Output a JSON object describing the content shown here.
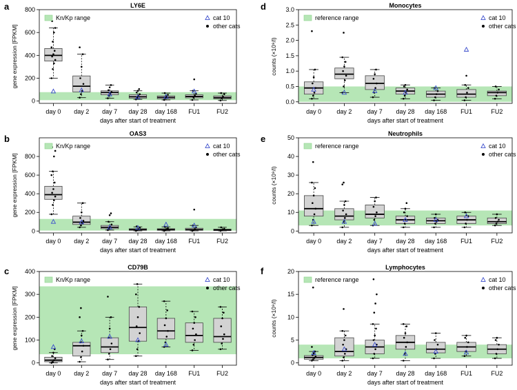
{
  "chart_data": [
    {
      "panel": "a",
      "type": "boxplot",
      "title": "LY6E",
      "ylabel": "gene expression [FPKM]",
      "xlabel": "days after start of treatment",
      "categories": [
        "day 0",
        "day 2",
        "day 7",
        "day 28",
        "day 168",
        "FU1",
        "FU2"
      ],
      "ylim": [
        -20,
        800
      ],
      "yticks": [
        0,
        200,
        400,
        600,
        800
      ],
      "band": [
        8,
        78
      ],
      "band_label": "Kn/Kp range",
      "legend": [
        "cat 10",
        "other cats"
      ],
      "series": [
        {
          "q1": 350,
          "median": 400,
          "q3": 460,
          "lo": 200,
          "hi": 640,
          "cat10": 85,
          "pts": [
            200,
            280,
            330,
            360,
            390,
            410,
            440,
            470,
            520,
            600,
            640,
            700
          ]
        },
        {
          "q1": 80,
          "median": 130,
          "q3": 220,
          "lo": 30,
          "hi": 410,
          "cat10": 95,
          "pts": [
            30,
            60,
            90,
            150,
            200,
            300,
            410,
            470
          ]
        },
        {
          "q1": 55,
          "median": 75,
          "q3": 90,
          "lo": 25,
          "hi": 140,
          "cat10": 60,
          "pts": [
            25,
            45,
            65,
            80,
            95,
            120,
            140
          ]
        },
        {
          "q1": 25,
          "median": 38,
          "q3": 55,
          "lo": 15,
          "hi": 90,
          "cat10": 35,
          "pts": [
            15,
            30,
            45,
            60,
            75,
            90,
            105
          ]
        },
        {
          "q1": 20,
          "median": 32,
          "q3": 45,
          "lo": 10,
          "hi": 70,
          "cat10": 40,
          "pts": [
            10,
            25,
            40,
            55,
            70
          ]
        },
        {
          "q1": 28,
          "median": 40,
          "q3": 55,
          "lo": 10,
          "hi": 90,
          "cat10": 85,
          "pts": [
            10,
            30,
            50,
            65,
            90,
            190
          ]
        },
        {
          "q1": 20,
          "median": 30,
          "q3": 45,
          "lo": 5,
          "hi": 70,
          "cat10": null,
          "pts": [
            5,
            25,
            40,
            60,
            70
          ]
        }
      ]
    },
    {
      "panel": "b",
      "type": "boxplot",
      "title": "OAS3",
      "ylabel": "gene expression [FPKM]",
      "xlabel": "days after start of treatment",
      "categories": [
        "day 0",
        "day 2",
        "day 7",
        "day 28",
        "day 168",
        "FU1",
        "FU2"
      ],
      "ylim": [
        -20,
        1000
      ],
      "yticks": [
        0,
        200,
        400,
        600,
        800
      ],
      "band": [
        5,
        130
      ],
      "band_label": "Kn/Kp range",
      "legend": [
        "cat 10",
        "other cats"
      ],
      "series": [
        {
          "q1": 340,
          "median": 390,
          "q3": 480,
          "lo": 180,
          "hi": 640,
          "cat10": 100,
          "pts": [
            180,
            280,
            330,
            370,
            410,
            450,
            520,
            600,
            640,
            800,
            860,
            900
          ]
        },
        {
          "q1": 70,
          "median": 95,
          "q3": 160,
          "lo": 40,
          "hi": 300,
          "cat10": 95,
          "pts": [
            40,
            60,
            85,
            110,
            140,
            200,
            300
          ]
        },
        {
          "q1": 25,
          "median": 40,
          "q3": 60,
          "lo": 10,
          "hi": 100,
          "cat10": 40,
          "pts": [
            10,
            25,
            45,
            70,
            100,
            170,
            190
          ]
        },
        {
          "q1": 8,
          "median": 15,
          "q3": 25,
          "lo": 2,
          "hi": 45,
          "cat10": 35,
          "pts": [
            2,
            10,
            20,
            35,
            50
          ]
        },
        {
          "q1": 8,
          "median": 15,
          "q3": 25,
          "lo": 2,
          "hi": 45,
          "cat10": 70,
          "pts": [
            2,
            10,
            20,
            30,
            45
          ]
        },
        {
          "q1": 8,
          "median": 15,
          "q3": 30,
          "lo": 2,
          "hi": 60,
          "cat10": 60,
          "pts": [
            2,
            10,
            20,
            40,
            60,
            230
          ]
        },
        {
          "q1": 5,
          "median": 12,
          "q3": 20,
          "lo": 2,
          "hi": 40,
          "cat10": null,
          "pts": [
            2,
            8,
            15,
            25,
            40
          ]
        }
      ]
    },
    {
      "panel": "c",
      "type": "boxplot",
      "title": "CD79B",
      "ylabel": "gene expression [FPKM]",
      "xlabel": "days after start of treatment",
      "categories": [
        "day 0",
        "day 2",
        "day 7",
        "day 28",
        "day 168",
        "FU1",
        "FU2"
      ],
      "ylim": [
        -10,
        400
      ],
      "yticks": [
        0,
        100,
        200,
        300,
        400
      ],
      "band": [
        38,
        335
      ],
      "band_label": "Kn/Kp range",
      "legend": [
        "cat 10",
        "other cats"
      ],
      "series": [
        {
          "q1": 5,
          "median": 12,
          "q3": 25,
          "lo": 0,
          "hi": 45,
          "cat10": 70,
          "pts": [
            0,
            5,
            12,
            20,
            30,
            45,
            60
          ]
        },
        {
          "q1": 30,
          "median": 75,
          "q3": 90,
          "lo": 5,
          "hi": 140,
          "cat10": 95,
          "pts": [
            5,
            25,
            50,
            75,
            90,
            120,
            140,
            200,
            240
          ]
        },
        {
          "q1": 45,
          "median": 70,
          "q3": 110,
          "lo": 15,
          "hi": 200,
          "cat10": 115,
          "pts": [
            15,
            40,
            60,
            85,
            110,
            150,
            200,
            290
          ]
        },
        {
          "q1": 95,
          "median": 155,
          "q3": 245,
          "lo": 30,
          "hi": 345,
          "cat10": 100,
          "pts": [
            30,
            60,
            95,
            130,
            160,
            200,
            245,
            300,
            345
          ]
        },
        {
          "q1": 105,
          "median": 140,
          "q3": 195,
          "lo": 70,
          "hi": 270,
          "cat10": 80,
          "pts": [
            70,
            90,
            115,
            140,
            165,
            195,
            230,
            270
          ]
        },
        {
          "q1": 90,
          "median": 120,
          "q3": 175,
          "lo": 55,
          "hi": 225,
          "cat10": null,
          "pts": [
            55,
            80,
            100,
            125,
            150,
            175,
            200,
            225
          ]
        },
        {
          "q1": 90,
          "median": 115,
          "q3": 195,
          "lo": 60,
          "hi": 245,
          "cat10": null,
          "pts": [
            60,
            85,
            105,
            125,
            160,
            195,
            220,
            245
          ]
        }
      ]
    },
    {
      "panel": "d",
      "type": "boxplot",
      "title": "Monocytes",
      "ylabel": "counts (×10⁹/l)",
      "xlabel": "days after start of treatment",
      "categories": [
        "day 0",
        "day 2",
        "day 7",
        "day 28",
        "day 168",
        "FU1",
        "FU2"
      ],
      "ylim": [
        -0.05,
        3.0
      ],
      "yticks": [
        0.0,
        0.5,
        1.0,
        1.5,
        2.0,
        2.5,
        3.0
      ],
      "band": [
        0.0,
        0.5
      ],
      "band_label": "reference range",
      "legend": [
        "cat 10",
        "other cats"
      ],
      "series": [
        {
          "q1": 0.25,
          "median": 0.45,
          "q3": 0.65,
          "lo": 0.1,
          "hi": 1.05,
          "cat10": 0.4,
          "pts": [
            0.1,
            0.2,
            0.3,
            0.45,
            0.6,
            0.8,
            1.05,
            2.3
          ]
        },
        {
          "q1": 0.75,
          "median": 0.9,
          "q3": 1.1,
          "lo": 0.3,
          "hi": 1.45,
          "cat10": 0.3,
          "pts": [
            0.3,
            0.5,
            0.7,
            0.85,
            1.0,
            1.15,
            1.3,
            1.45,
            2.25
          ]
        },
        {
          "q1": 0.4,
          "median": 0.6,
          "q3": 0.85,
          "lo": 0.15,
          "hi": 1.05,
          "cat10": 0.35,
          "pts": [
            0.15,
            0.3,
            0.45,
            0.6,
            0.75,
            0.9,
            1.05
          ]
        },
        {
          "q1": 0.25,
          "median": 0.35,
          "q3": 0.45,
          "lo": 0.1,
          "hi": 0.55,
          "cat10": 0.3,
          "pts": [
            0.1,
            0.2,
            0.3,
            0.4,
            0.5,
            0.55
          ]
        },
        {
          "q1": 0.15,
          "median": 0.25,
          "q3": 0.35,
          "lo": 0.05,
          "hi": 0.45,
          "cat10": 0.45,
          "pts": [
            0.05,
            0.15,
            0.25,
            0.35,
            0.45
          ]
        },
        {
          "q1": 0.15,
          "median": 0.25,
          "q3": 0.4,
          "lo": 0.05,
          "hi": 0.55,
          "cat10": 1.7,
          "pts": [
            0.05,
            0.15,
            0.3,
            0.45,
            0.55,
            0.85
          ]
        },
        {
          "q1": 0.2,
          "median": 0.3,
          "q3": 0.35,
          "lo": 0.1,
          "hi": 0.5,
          "cat10": null,
          "pts": [
            0.1,
            0.2,
            0.3,
            0.4,
            0.5
          ]
        }
      ]
    },
    {
      "panel": "e",
      "type": "boxplot",
      "title": "Neutrophils",
      "ylabel": "counts (×10⁹/l)",
      "xlabel": "days after start of treatment",
      "categories": [
        "day 0",
        "day 2",
        "day 7",
        "day 28",
        "day 168",
        "FU1",
        "FU2"
      ],
      "ylim": [
        -1,
        50
      ],
      "yticks": [
        0,
        10,
        20,
        30,
        40,
        50
      ],
      "band": [
        3,
        11
      ],
      "band_label": "reference range",
      "legend": [
        "cat 10",
        "other cats"
      ],
      "series": [
        {
          "q1": 8,
          "median": 12,
          "q3": 19,
          "lo": 3,
          "hi": 26,
          "cat10": 5,
          "pts": [
            3,
            6,
            9,
            12,
            15,
            19,
            23,
            26,
            37
          ]
        },
        {
          "q1": 6,
          "median": 8,
          "q3": 12,
          "lo": 2,
          "hi": 16,
          "cat10": 5,
          "pts": [
            2,
            5,
            7,
            9,
            11,
            14,
            16,
            25,
            26
          ]
        },
        {
          "q1": 7,
          "median": 9,
          "q3": 14,
          "lo": 3,
          "hi": 18,
          "cat10": 4,
          "pts": [
            3,
            6,
            8,
            10,
            13,
            16,
            18
          ]
        },
        {
          "q1": 4,
          "median": 6,
          "q3": 8,
          "lo": 2,
          "hi": 12,
          "cat10": 6,
          "pts": [
            2,
            4,
            6,
            8,
            10,
            12,
            15
          ]
        },
        {
          "q1": 4,
          "median": 5.5,
          "q3": 7,
          "lo": 2,
          "hi": 9,
          "cat10": 6,
          "pts": [
            2,
            4,
            5,
            6,
            7,
            9
          ]
        },
        {
          "q1": 4,
          "median": 6,
          "q3": 8,
          "lo": 2,
          "hi": 10,
          "cat10": 8,
          "pts": [
            2,
            4,
            6,
            8,
            10
          ]
        },
        {
          "q1": 4,
          "median": 5,
          "q3": 7,
          "lo": 3,
          "hi": 9,
          "cat10": null,
          "pts": [
            3,
            4,
            5,
            6,
            7,
            9
          ]
        }
      ]
    },
    {
      "panel": "f",
      "type": "boxplot",
      "title": "Lymphocytes",
      "ylabel": "counts (×10⁹/l)",
      "xlabel": "days after start of treatment",
      "categories": [
        "day 0",
        "day 2",
        "day 7",
        "day 28",
        "day 168",
        "FU1",
        "FU2"
      ],
      "ylim": [
        -0.5,
        20
      ],
      "yticks": [
        0,
        5,
        10,
        15,
        20
      ],
      "band": [
        1,
        4
      ],
      "band_label": "reference range",
      "legend": [
        "cat 10",
        "other cats"
      ],
      "series": [
        {
          "q1": 0.8,
          "median": 1.2,
          "q3": 1.6,
          "lo": 0.5,
          "hi": 2.5,
          "cat10": 2.2,
          "pts": [
            0.5,
            0.8,
            1.1,
            1.4,
            1.7,
            2.1,
            2.5,
            3.5,
            16.5
          ]
        },
        {
          "q1": 1.5,
          "median": 2.5,
          "q3": 5.5,
          "lo": 0.5,
          "hi": 7,
          "cat10": 3,
          "pts": [
            0.5,
            1.2,
            2,
            3,
            4,
            5,
            6,
            7,
            11.8
          ]
        },
        {
          "q1": 2,
          "median": 3.5,
          "q3": 5,
          "lo": 1,
          "hi": 8.5,
          "cat10": 4,
          "pts": [
            1,
            2,
            3,
            4,
            5,
            6,
            7.5,
            8.5,
            11,
            13,
            15,
            18.3
          ]
        },
        {
          "q1": 3,
          "median": 4.5,
          "q3": 6,
          "lo": 0.5,
          "hi": 8.5,
          "cat10": 2,
          "pts": [
            0.5,
            2,
            3.5,
            4.5,
            5.5,
            6.5,
            8,
            8.5
          ]
        },
        {
          "q1": 2.2,
          "median": 3,
          "q3": 4.5,
          "lo": 1,
          "hi": 6.5,
          "cat10": 2.5,
          "pts": [
            1,
            2,
            3,
            4,
            5,
            6.5
          ]
        },
        {
          "q1": 2.5,
          "median": 3.5,
          "q3": 4.5,
          "lo": 1.5,
          "hi": 6,
          "cat10": 2.3,
          "pts": [
            1.5,
            2.5,
            3.5,
            4.5,
            5.5,
            6
          ]
        },
        {
          "q1": 2,
          "median": 3,
          "q3": 4,
          "lo": 1,
          "hi": 5.5,
          "cat10": null,
          "pts": [
            1,
            2,
            3,
            4,
            5,
            5.5
          ]
        }
      ]
    }
  ],
  "panel_labels": [
    "a",
    "b",
    "c",
    "d",
    "e",
    "f"
  ],
  "colors": {
    "band": "#b6e6b6",
    "band_border": "#8cd28c",
    "box": "#d3d3d3",
    "cat10": "#3b4dcc",
    "points": "#000000",
    "axis": "#000000"
  }
}
